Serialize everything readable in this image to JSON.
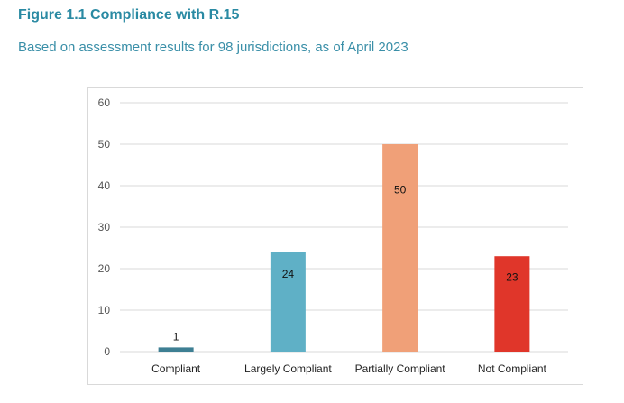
{
  "figure": {
    "title": "Figure 1.1 Compliance with R.15",
    "subtitle": "Based on assessment results for 98 jurisdictions, as of April 2023"
  },
  "chart_data": {
    "type": "bar",
    "categories": [
      "Compliant",
      "Largely Compliant",
      "Partially Compliant",
      "Not Compliant"
    ],
    "values": [
      1,
      24,
      50,
      23
    ],
    "colors": [
      "#3e7f93",
      "#5fb0c6",
      "#f0a078",
      "#e0362a"
    ],
    "data_labels": [
      "1",
      "24",
      "50",
      "23"
    ],
    "yticks": [
      0,
      10,
      20,
      30,
      40,
      50,
      60
    ],
    "ylim": [
      0,
      60
    ],
    "grid": true,
    "legend": "none"
  }
}
